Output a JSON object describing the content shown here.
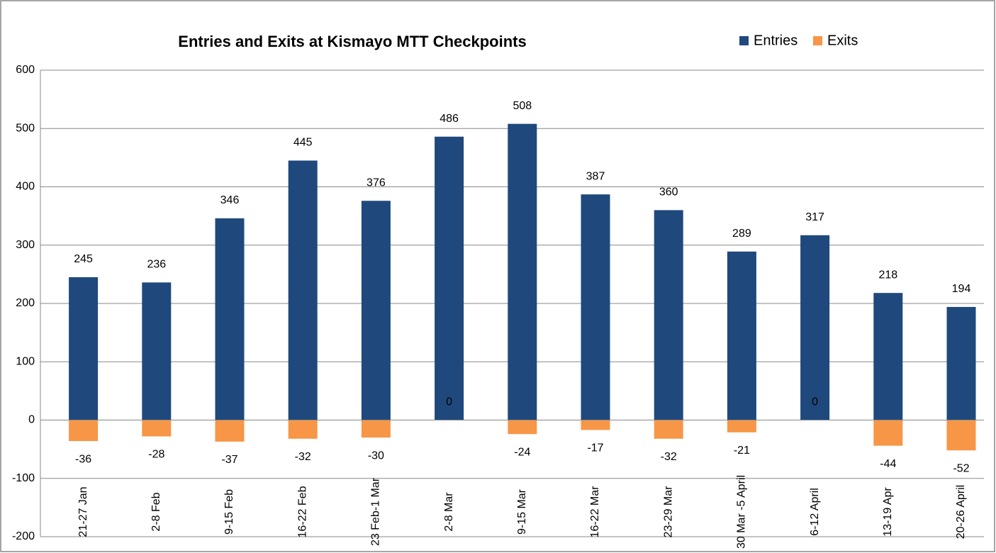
{
  "chart_data": {
    "type": "bar",
    "title": "Entries and Exits at Kismayo MTT Checkpoints",
    "categories": [
      "21-27 Jan",
      "2-8 Feb",
      "9-15 Feb",
      "16-22 Feb",
      "23 Feb-1 Mar",
      "2-8 Mar",
      "9-15 Mar",
      "16-22 Mar",
      "23-29 Mar",
      "30 Mar -5 April",
      "6-12 April",
      "13-19 Apr",
      "20-26 April"
    ],
    "series": [
      {
        "name": "Entries",
        "color": "#1f497d",
        "values": [
          245,
          236,
          346,
          445,
          376,
          486,
          508,
          387,
          360,
          289,
          317,
          218,
          194
        ]
      },
      {
        "name": "Exits",
        "color": "#f79646",
        "values": [
          -36,
          -28,
          -37,
          -32,
          -30,
          0,
          -24,
          -17,
          -32,
          -21,
          0,
          -44,
          -52
        ]
      }
    ],
    "ylim": [
      -200,
      600
    ],
    "yticks": [
      -200,
      -100,
      0,
      100,
      200,
      300,
      400,
      500,
      600
    ],
    "grid": true,
    "legend": "top-right"
  }
}
